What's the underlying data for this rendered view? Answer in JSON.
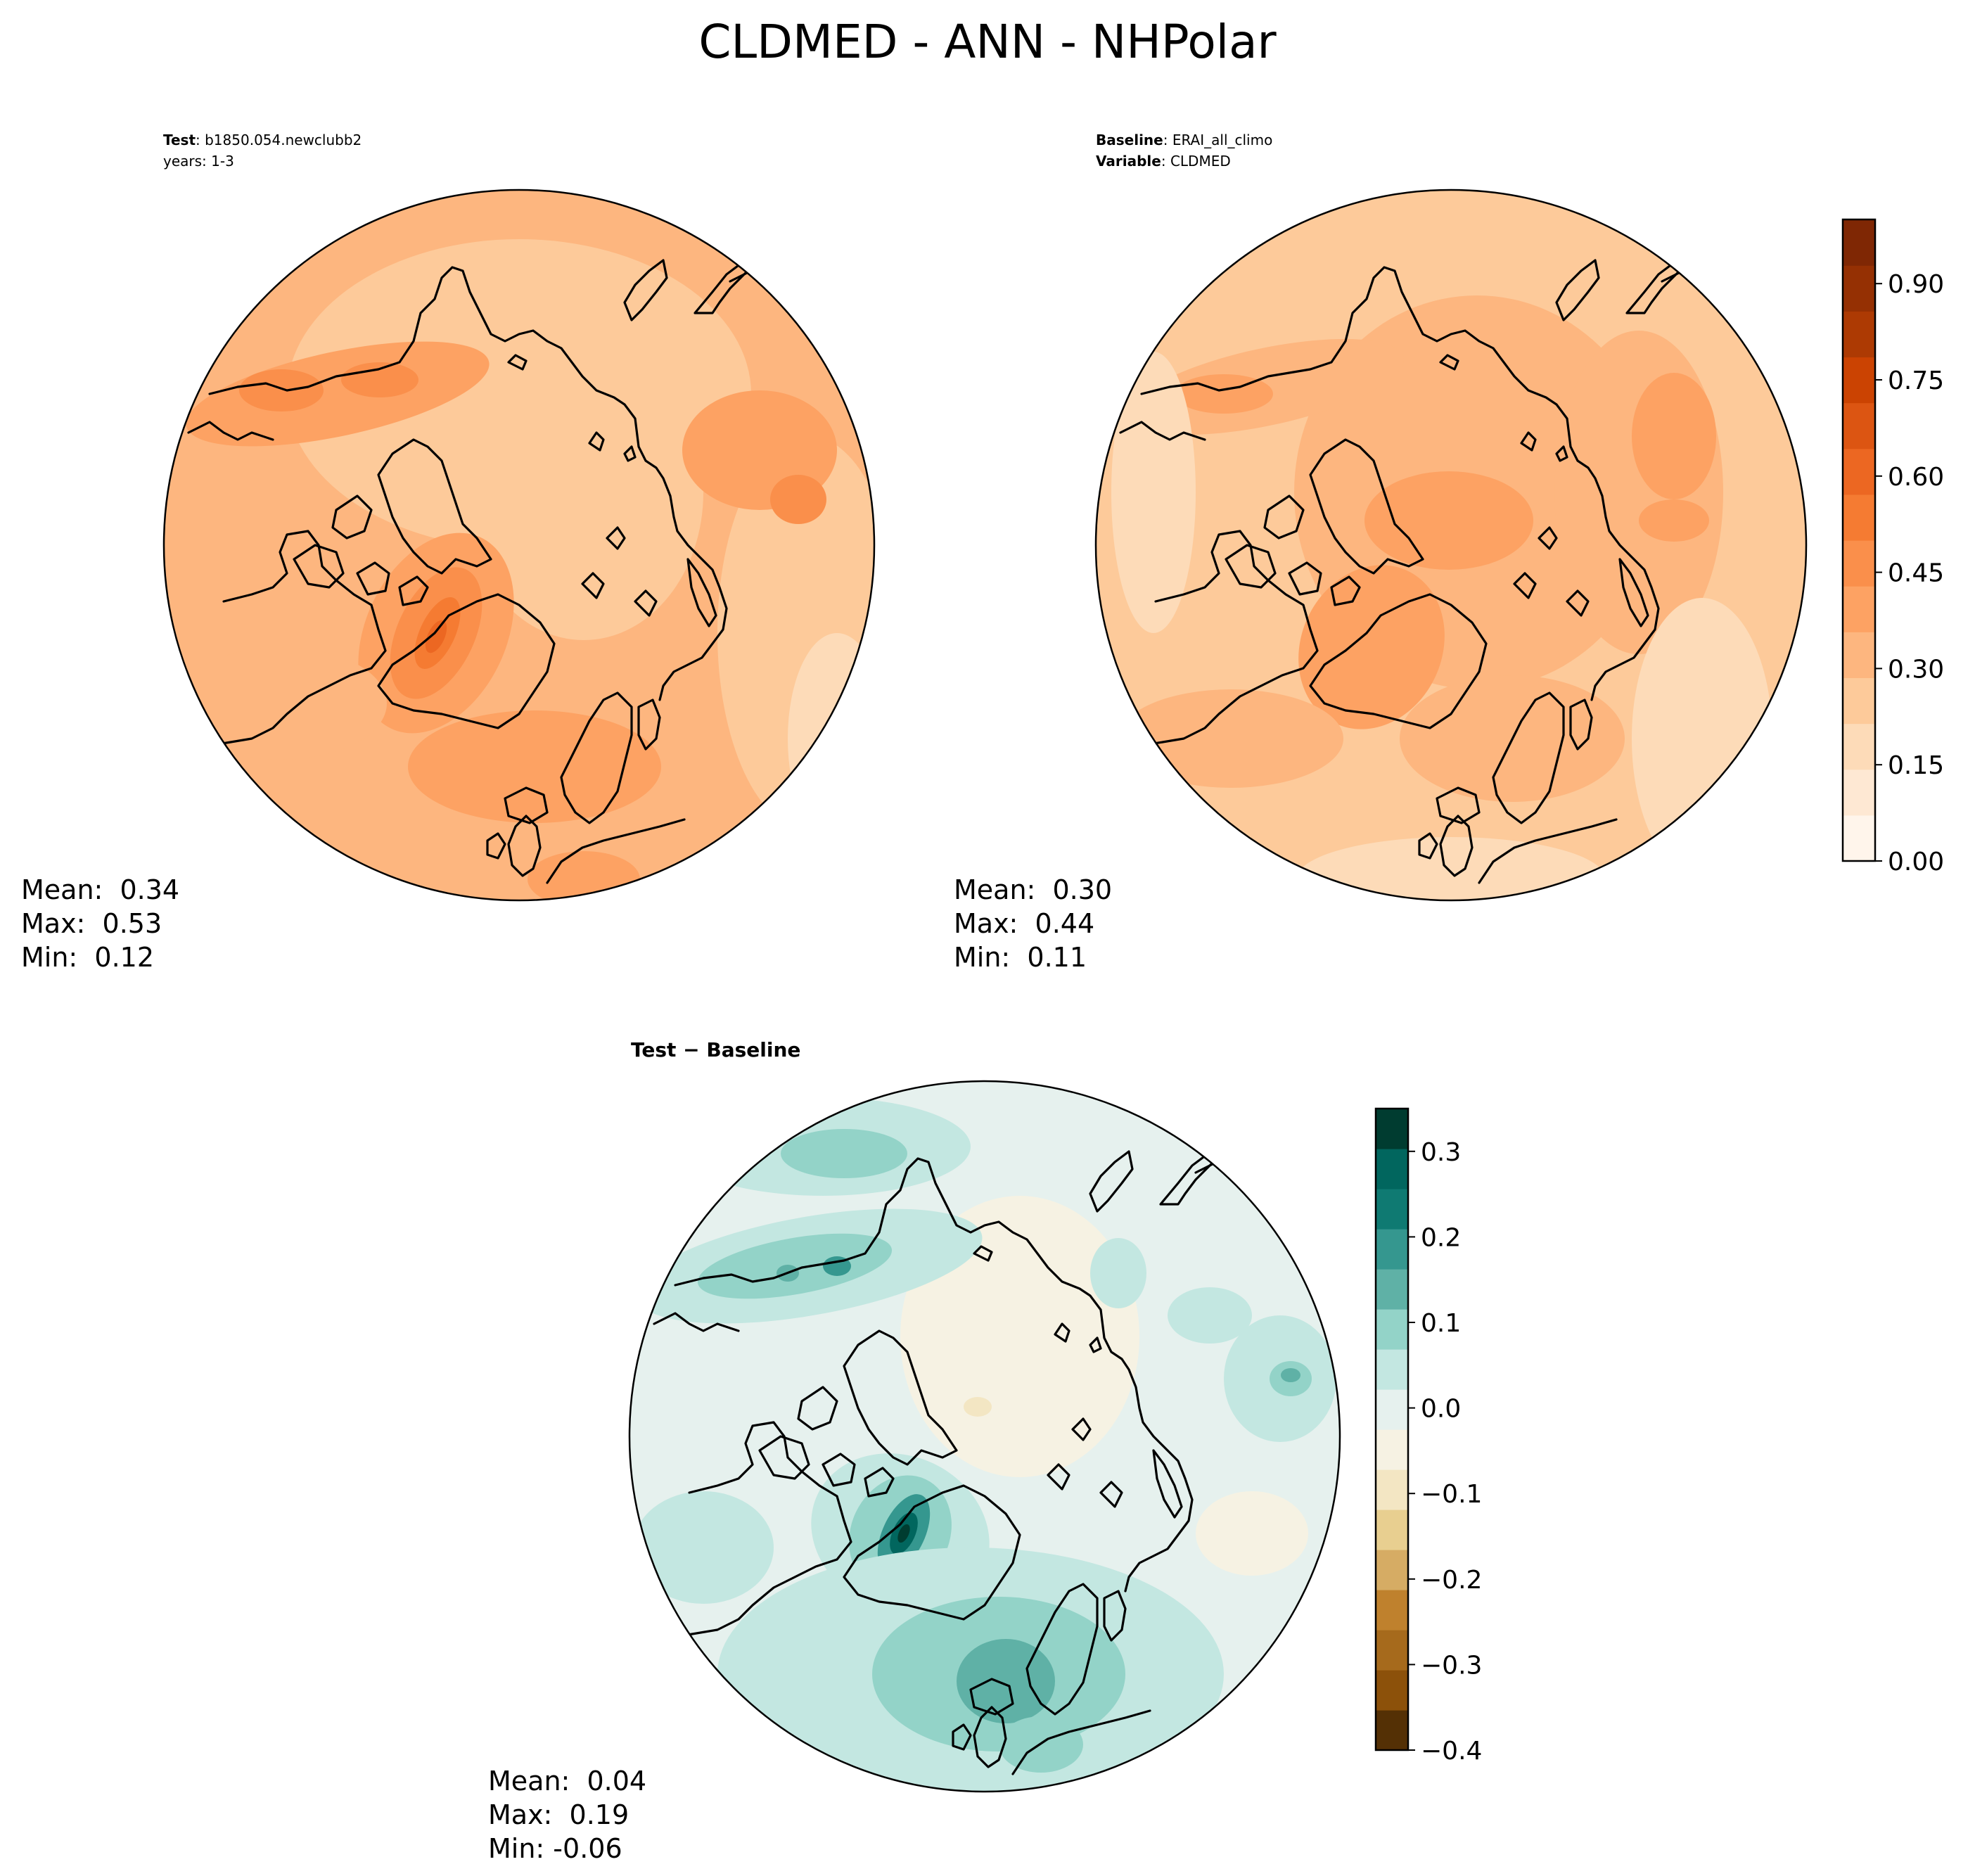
{
  "figure": {
    "title": "CLDMED - ANN - NHPolar"
  },
  "panels": [
    {
      "id": "test",
      "header": [
        {
          "bold": "Test",
          "text": ": b1850.054.newclubb2"
        },
        {
          "bold": "",
          "text": "years: 1-3"
        }
      ],
      "stats": [
        "Mean:  0.34",
        "Max:  0.53",
        "Min:  0.12"
      ],
      "colormap": "oranges"
    },
    {
      "id": "baseline",
      "header": [
        {
          "bold": "Baseline",
          "text": ": ERAI_all_climo"
        },
        {
          "bold": "Variable",
          "text": ": CLDMED"
        }
      ],
      "stats": [
        "Mean:  0.30",
        "Max:  0.44",
        "Min:  0.11"
      ],
      "colormap": "oranges"
    },
    {
      "id": "diff",
      "header": [
        {
          "bold": "Test − Baseline",
          "text": ""
        }
      ],
      "stats": [
        "Mean:  0.04",
        "Max:  0.19",
        "Min: -0.06"
      ],
      "colormap": "brbg"
    }
  ],
  "colorbars": {
    "main": {
      "ticks": [
        "0.00",
        "0.15",
        "0.30",
        "0.45",
        "0.60",
        "0.75",
        "0.90"
      ],
      "tick_values": [
        0.0,
        0.15,
        0.3,
        0.45,
        0.6,
        0.75,
        0.9
      ],
      "range": [
        0.0,
        1.0
      ],
      "colors": [
        "#fff5eb",
        "#fee8d3",
        "#fddbb8",
        "#fdca9a",
        "#fdb67f",
        "#fda263",
        "#fa8f4b",
        "#f57b32",
        "#ec6722",
        "#dc5512",
        "#cb4302",
        "#ad3a03",
        "#953003",
        "#7f2704"
      ]
    },
    "diff": {
      "ticks": [
        "−0.4",
        "−0.3",
        "−0.2",
        "−0.1",
        "0.0",
        "0.1",
        "0.2",
        "0.3"
      ],
      "tick_values": [
        -0.4,
        -0.3,
        -0.2,
        -0.1,
        0.0,
        0.1,
        0.2,
        0.3
      ],
      "range": [
        -0.4,
        0.35
      ],
      "colors": [
        "#543005",
        "#8c510a",
        "#a66a1c",
        "#bf812d",
        "#d6ac64",
        "#e8cf90",
        "#f3e6c3",
        "#f6f2e3",
        "#e6f1ee",
        "#c3e7e1",
        "#93d3c8",
        "#5fb1a6",
        "#35978f",
        "#0f7a72",
        "#01665e",
        "#003c30"
      ]
    }
  },
  "chart_data": {
    "type": "heatmap",
    "title": "CLDMED - ANN - NHPolar",
    "projection": "north-polar-stereographic",
    "maps": [
      {
        "name": "Test",
        "case": "b1850.054.newclubb2",
        "years": "1-3",
        "mean": 0.34,
        "max": 0.53,
        "min": 0.12
      },
      {
        "name": "Baseline",
        "case": "ERAI_all_climo",
        "variable": "CLDMED",
        "mean": 0.3,
        "max": 0.44,
        "min": 0.11
      },
      {
        "name": "Test − Baseline",
        "mean": 0.04,
        "max": 0.19,
        "min": -0.06
      }
    ],
    "colorbar_main": {
      "ticks": [
        0.0,
        0.15,
        0.3,
        0.45,
        0.6,
        0.75,
        0.9
      ],
      "range": [
        0.0,
        1.0
      ]
    },
    "colorbar_diff": {
      "ticks": [
        -0.4,
        -0.3,
        -0.2,
        -0.1,
        0.0,
        0.1,
        0.2,
        0.3
      ],
      "range": [
        -0.4,
        0.35
      ]
    }
  }
}
